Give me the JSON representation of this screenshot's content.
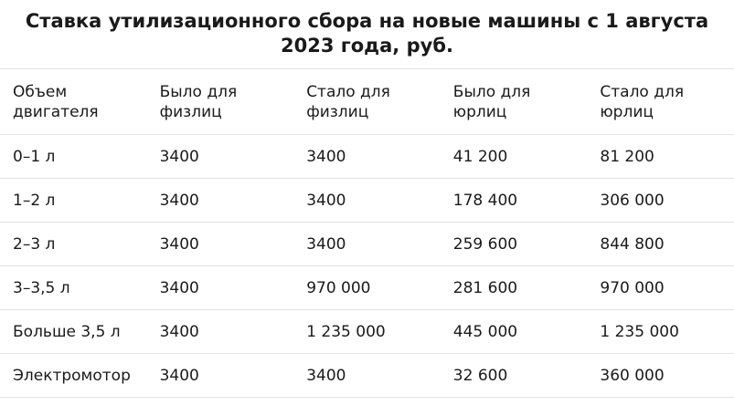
{
  "title": "Ставка утилизационного сбора на новые машины с 1 августа 2023 года, руб.",
  "table": {
    "header": [
      "Объем двигателя",
      "Было для физлиц",
      "Стало для физлиц",
      "Было для юрлиц",
      "Стало для юрлиц"
    ],
    "rows": [
      [
        "0–1 л",
        "3400",
        "3400",
        "41 200",
        "81 200"
      ],
      [
        "1–2 л",
        "3400",
        "3400",
        "178 400",
        "306 000"
      ],
      [
        "2–3 л",
        "3400",
        "3400",
        "259 600",
        "844 800"
      ],
      [
        "3–3,5 л",
        "3400",
        "970 000",
        "281 600",
        "970 000"
      ],
      [
        "Больше 3,5 л",
        "3400",
        "1 235 000",
        "445 000",
        "1 235 000"
      ],
      [
        "Электромотор",
        "3400",
        "3400",
        "32 600",
        "360 000"
      ]
    ]
  }
}
